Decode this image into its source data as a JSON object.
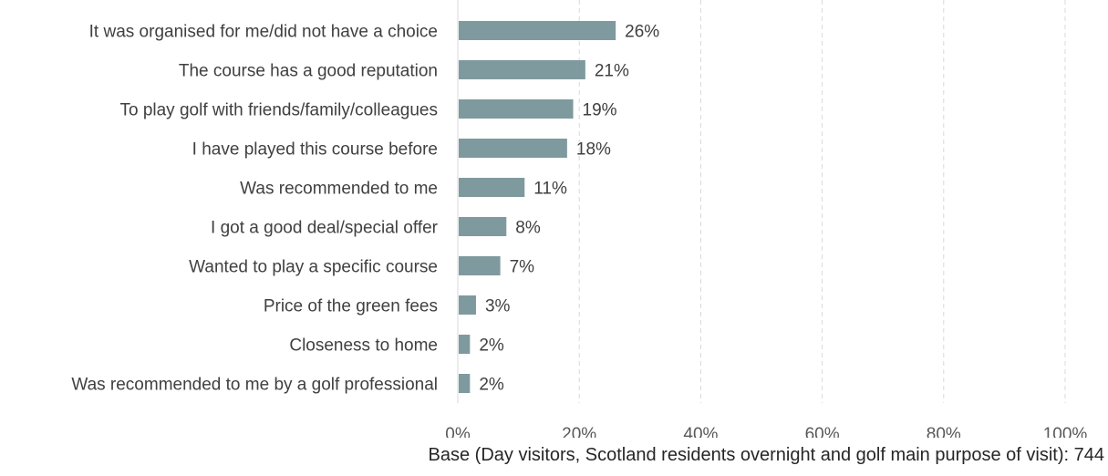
{
  "chart_data": {
    "type": "bar",
    "orientation": "horizontal",
    "categories": [
      "It was organised for me/did not have a choice",
      "The course has a good reputation",
      "To play golf with friends/family/colleagues",
      "I have played this course before",
      "Was recommended to me",
      "I got a good deal/special offer",
      "Wanted to play a specific course",
      "Price of the green fees",
      "Closeness to home",
      "Was recommended to me by a golf professional"
    ],
    "values": [
      26,
      21,
      19,
      18,
      11,
      8,
      7,
      3,
      2,
      2
    ],
    "value_labels": [
      "26%",
      "21%",
      "19%",
      "18%",
      "11%",
      "8%",
      "7%",
      "3%",
      "2%",
      "2%"
    ],
    "xlim": [
      0,
      100
    ],
    "xticks": [
      0,
      20,
      40,
      60,
      80,
      100
    ],
    "xtick_labels": [
      "0%",
      "20%",
      "40%",
      "60%",
      "80%",
      "100%"
    ],
    "grid": "vertical dashed",
    "bar_color": "#7f9a9e",
    "footnote": "Base (Day visitors, Scotland residents overnight and golf main purpose of visit): 744"
  }
}
